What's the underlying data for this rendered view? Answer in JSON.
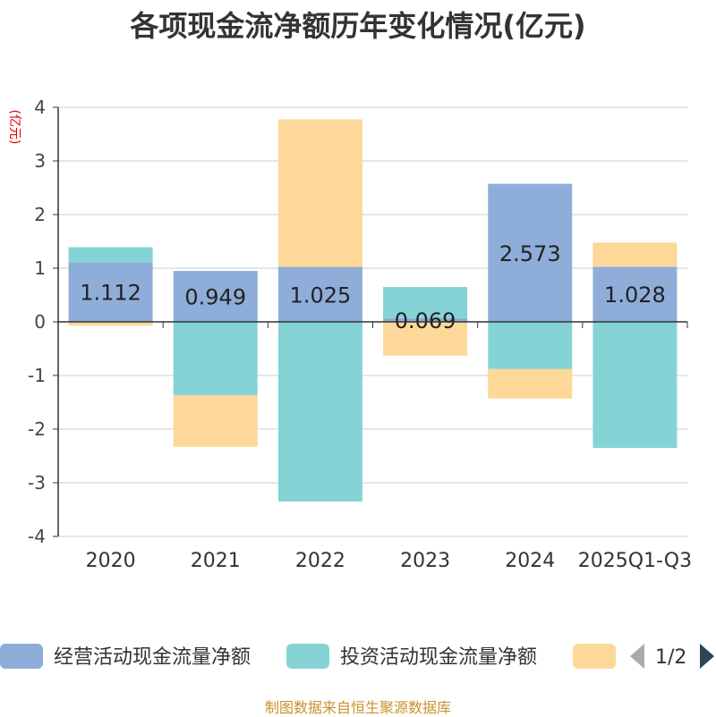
{
  "chart_data": {
    "type": "bar",
    "stacked": true,
    "title": "各项现金流净额历年变化情况(亿元)",
    "ylabel": "(亿元)",
    "ylim": [
      -4,
      4
    ],
    "yticks": [
      "4",
      "3",
      "2",
      "1",
      "0",
      "-1",
      "-2",
      "-3",
      "-4"
    ],
    "categories": [
      "2020",
      "2021",
      "2022",
      "2023",
      "2024",
      "2025Q1-Q3"
    ],
    "series": [
      {
        "name": "经营活动现金流量净额",
        "color": "#8eadd9",
        "values": [
          1.112,
          0.949,
          1.025,
          0.069,
          2.573,
          1.028
        ],
        "labels": [
          "1.112",
          "0.949",
          "1.025",
          "0.069",
          "2.573",
          "1.028"
        ]
      },
      {
        "name": "投资活动现金流量净额",
        "color": "#86d3d6",
        "values": [
          0.28,
          -1.37,
          -3.35,
          0.58,
          -0.88,
          -2.35
        ]
      },
      {
        "name": "",
        "color": "#fdd898",
        "values": [
          -0.07,
          -0.96,
          2.75,
          -0.63,
          -0.55,
          0.45
        ]
      }
    ],
    "legend": {
      "position": "bottom",
      "page": "1/2"
    },
    "grid": true
  },
  "source": "制图数据来自恒生聚源数据库"
}
